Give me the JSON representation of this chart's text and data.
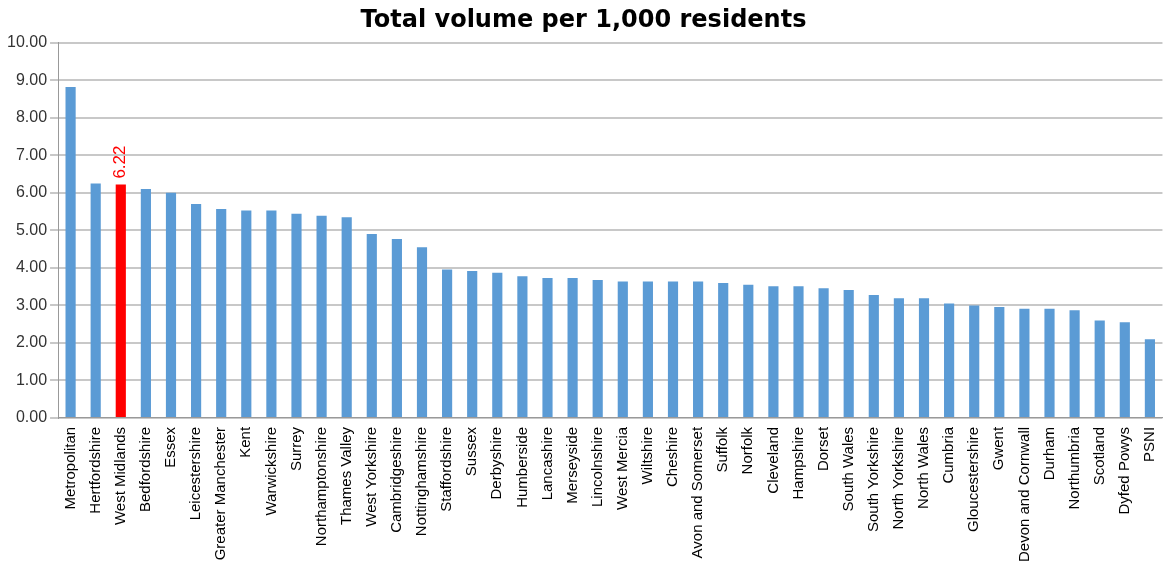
{
  "chart_data": {
    "type": "bar",
    "title": "Total volume per 1,000 residents",
    "categories": [
      "Metropolitan",
      "Hertfordshire",
      "West Midlands",
      "Bedfordshire",
      "Essex",
      "Leicestershire",
      "Greater Manchester",
      "Kent",
      "Warwickshire",
      "Surrey",
      "Northamptonshire",
      "Thames Valley",
      "West Yorkshire",
      "Cambridgeshire",
      "Nottinghamshire",
      "Staffordshire",
      "Sussex",
      "Derbyshire",
      "Humberside",
      "Lancashire",
      "Merseyside",
      "Lincolnshire",
      "West Mercia",
      "Wiltshire",
      "Cheshire",
      "Avon and Somerset",
      "Suffolk",
      "Norfolk",
      "Cleveland",
      "Hampshire",
      "Dorset",
      "South Wales",
      "South Yorkshire",
      "North Yorkshire",
      "North Wales",
      "Cumbria",
      "Gloucestershire",
      "Gwent",
      "Devon and Cornwall",
      "Durham",
      "Northumbria",
      "Scotland",
      "Dyfed Powys",
      "PSNI"
    ],
    "values": [
      8.82,
      6.25,
      6.22,
      6.1,
      6.0,
      5.7,
      5.57,
      5.53,
      5.53,
      5.44,
      5.39,
      5.35,
      4.9,
      4.77,
      4.55,
      3.96,
      3.92,
      3.87,
      3.78,
      3.73,
      3.73,
      3.68,
      3.64,
      3.64,
      3.64,
      3.64,
      3.6,
      3.55,
      3.51,
      3.51,
      3.46,
      3.41,
      3.28,
      3.19,
      3.19,
      3.05,
      3.0,
      2.96,
      2.91,
      2.91,
      2.87,
      2.6,
      2.55,
      2.1
    ],
    "colors": [
      "#5b9bd5",
      "#5b9bd5",
      "#ff0000",
      "#5b9bd5",
      "#5b9bd5",
      "#5b9bd5",
      "#5b9bd5",
      "#5b9bd5",
      "#5b9bd5",
      "#5b9bd5",
      "#5b9bd5",
      "#5b9bd5",
      "#5b9bd5",
      "#5b9bd5",
      "#5b9bd5",
      "#5b9bd5",
      "#5b9bd5",
      "#5b9bd5",
      "#5b9bd5",
      "#5b9bd5",
      "#5b9bd5",
      "#5b9bd5",
      "#5b9bd5",
      "#5b9bd5",
      "#5b9bd5",
      "#5b9bd5",
      "#5b9bd5",
      "#5b9bd5",
      "#5b9bd5",
      "#5b9bd5",
      "#5b9bd5",
      "#5b9bd5",
      "#5b9bd5",
      "#5b9bd5",
      "#5b9bd5",
      "#5b9bd5",
      "#5b9bd5",
      "#5b9bd5",
      "#5b9bd5",
      "#5b9bd5",
      "#5b9bd5",
      "#5b9bd5",
      "#5b9bd5",
      "#5b9bd5"
    ],
    "value_labels": [
      null,
      null,
      "6.22",
      null,
      null,
      null,
      null,
      null,
      null,
      null,
      null,
      null,
      null,
      null,
      null,
      null,
      null,
      null,
      null,
      null,
      null,
      null,
      null,
      null,
      null,
      null,
      null,
      null,
      null,
      null,
      null,
      null,
      null,
      null,
      null,
      null,
      null,
      null,
      null,
      null,
      null,
      null,
      null,
      null
    ],
    "ylim": [
      0,
      10
    ],
    "yticks": [
      {
        "value": 0,
        "label": "0.00"
      },
      {
        "value": 1,
        "label": "1.00"
      },
      {
        "value": 2,
        "label": "2.00"
      },
      {
        "value": 3,
        "label": "3.00"
      },
      {
        "value": 4,
        "label": "4.00"
      },
      {
        "value": 5,
        "label": "5.00"
      },
      {
        "value": 6,
        "label": "6.00"
      },
      {
        "value": 7,
        "label": "7.00"
      },
      {
        "value": 8,
        "label": "8.00"
      },
      {
        "value": 9,
        "label": "9.00"
      },
      {
        "value": 10,
        "label": "10.00"
      }
    ],
    "grid": "y",
    "legend": false
  }
}
